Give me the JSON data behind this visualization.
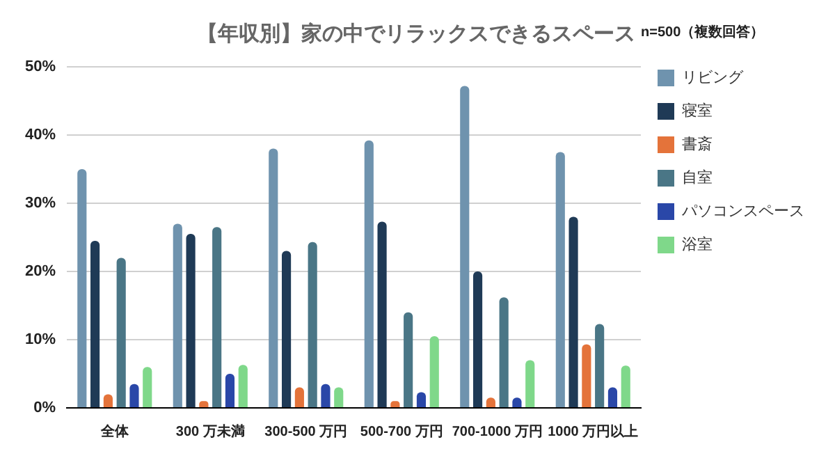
{
  "chart_data": {
    "type": "bar",
    "title": "【年収別】家の中でリラックスできるスペース",
    "legend_title": "n=500（複数回答）",
    "categories": [
      "全体",
      "300 万未満",
      "300-500 万円",
      "500-700 万円",
      "700-1000 万円",
      "1000 万円以上"
    ],
    "series": [
      {
        "name": "リビング",
        "color": "#6f93ae",
        "values": [
          35,
          27,
          38,
          39.2,
          47.2,
          37.5
        ]
      },
      {
        "name": "寝室",
        "color": "#1f3a56",
        "values": [
          24.5,
          25.5,
          23,
          27.3,
          20,
          28
        ]
      },
      {
        "name": "書斎",
        "color": "#e4733a",
        "values": [
          2,
          1,
          3,
          1,
          1.5,
          9.3
        ]
      },
      {
        "name": "自室",
        "color": "#4a7686",
        "values": [
          22,
          26.5,
          24.3,
          14,
          16.2,
          12.3
        ]
      },
      {
        "name": "パソコンスペース",
        "color": "#2a47a8",
        "values": [
          3.5,
          5,
          3.5,
          2.3,
          1.5,
          3
        ]
      },
      {
        "name": "浴室",
        "color": "#7fd88a",
        "values": [
          6,
          6.3,
          3,
          10.5,
          7,
          6.2
        ]
      }
    ],
    "ylim": [
      0,
      50
    ],
    "yticks": [
      {
        "value": 0,
        "label": "0%"
      },
      {
        "value": 10,
        "label": "10%"
      },
      {
        "value": 20,
        "label": "20%"
      },
      {
        "value": 30,
        "label": "30%"
      },
      {
        "value": 40,
        "label": "40%"
      },
      {
        "value": 50,
        "label": "50%"
      }
    ],
    "grid": "y",
    "legend": "right"
  }
}
